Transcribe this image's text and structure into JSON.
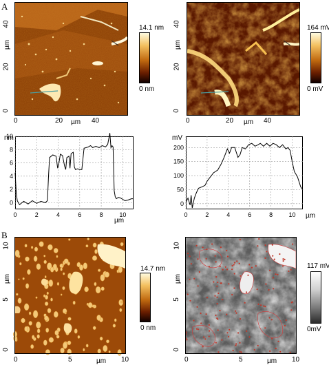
{
  "panel_labels": {
    "a": "A",
    "b": "B"
  },
  "units": {
    "um": "µm",
    "nm": "nm",
    "mv": "mV"
  },
  "images": {
    "a_topo": {
      "x_ticks": [
        "0",
        "20",
        "40"
      ],
      "y_ticks": [
        "0",
        "20",
        "40"
      ],
      "xlabel": "µm",
      "ylabel": "µm",
      "colorbar": {
        "max": "14.1 nm",
        "min": "0 nm"
      }
    },
    "a_pot": {
      "x_ticks": [
        "0",
        "20",
        "40"
      ],
      "y_ticks": [
        "0",
        "20",
        "40"
      ],
      "xlabel": "µm",
      "ylabel": "µm",
      "colorbar": {
        "max": "164 mV",
        "min": "0 mV"
      }
    },
    "b_topo": {
      "x_ticks": [
        "0",
        "5",
        "10"
      ],
      "y_ticks": [
        "0",
        "5",
        "10"
      ],
      "xlabel": "µm",
      "ylabel": "µm",
      "colorbar": {
        "max": "14.7 nm",
        "min": "0 nm"
      }
    },
    "b_pot": {
      "x_ticks": [
        "0",
        "5",
        "10"
      ],
      "y_ticks": [
        "0",
        "5",
        "10"
      ],
      "xlabel": "µm",
      "ylabel": "µm",
      "colorbar": {
        "max": "117 mV",
        "min": "0mV"
      }
    }
  },
  "chart_data": [
    {
      "type": "line",
      "ylabel": "nm",
      "xlabel": "µm",
      "xlim": [
        0,
        11
      ],
      "ylim": [
        -1,
        10
      ],
      "x_ticks": [
        0,
        2,
        4,
        6,
        8,
        10
      ],
      "y_ticks": [
        0,
        2,
        4,
        6,
        8,
        10
      ],
      "x": [
        0,
        0.1,
        0.2,
        0.4,
        0.8,
        1.2,
        1.6,
        2.0,
        2.4,
        2.8,
        3.0,
        3.1,
        3.2,
        3.5,
        3.8,
        3.95,
        4.05,
        4.2,
        4.4,
        4.6,
        4.7,
        4.8,
        5.0,
        5.1,
        5.2,
        5.4,
        5.5,
        5.6,
        5.8,
        6.0,
        6.2,
        6.4,
        6.6,
        6.8,
        7.0,
        7.2,
        7.5,
        7.8,
        8.1,
        8.4,
        8.6,
        8.8,
        8.9,
        9.0,
        9.1,
        9.2,
        9.3,
        9.4,
        9.6,
        9.8,
        10.0,
        10.2,
        10.5,
        10.8,
        11.0
      ],
      "y": [
        4.5,
        1.5,
        0.3,
        -0.3,
        0.2,
        -0.2,
        0.3,
        -0.1,
        0.2,
        0.0,
        0.3,
        4.0,
        6.8,
        7.2,
        7.0,
        5.2,
        5.8,
        7.3,
        7.1,
        5.5,
        5.0,
        6.8,
        7.0,
        5.2,
        7.4,
        7.6,
        5.4,
        5.0,
        5.1,
        5.0,
        5.0,
        8.2,
        8.3,
        8.4,
        8.6,
        8.3,
        8.5,
        8.3,
        8.6,
        8.4,
        8.8,
        10.5,
        8.3,
        8.6,
        8.4,
        1.8,
        0.9,
        0.6,
        0.8,
        0.7,
        0.5,
        0.3,
        0.4,
        0.6,
        0.6
      ]
    },
    {
      "type": "line",
      "ylabel": "mV",
      "xlabel": "µm",
      "xlim": [
        0,
        11
      ],
      "ylim": [
        -20,
        240
      ],
      "x_ticks": [
        0,
        2,
        4,
        6,
        8,
        10
      ],
      "y_ticks": [
        0,
        50,
        100,
        150,
        200
      ],
      "x": [
        0,
        0.2,
        0.4,
        0.5,
        0.6,
        0.8,
        1.0,
        1.2,
        1.5,
        1.8,
        2.0,
        2.3,
        2.6,
        3.0,
        3.3,
        3.6,
        3.9,
        4.1,
        4.3,
        4.6,
        4.9,
        5.1,
        5.3,
        5.6,
        5.9,
        6.2,
        6.5,
        6.8,
        7.0,
        7.3,
        7.6,
        7.9,
        8.2,
        8.5,
        8.8,
        9.1,
        9.4,
        9.6,
        9.8,
        10.0,
        10.2,
        10.5,
        10.8,
        11.0
      ],
      "y": [
        5,
        20,
        -5,
        30,
        -15,
        20,
        40,
        55,
        60,
        65,
        80,
        95,
        110,
        120,
        140,
        165,
        195,
        180,
        200,
        200,
        165,
        175,
        200,
        195,
        210,
        215,
        205,
        210,
        215,
        205,
        215,
        205,
        215,
        210,
        200,
        210,
        195,
        200,
        190,
        150,
        115,
        95,
        60,
        50
      ]
    }
  ]
}
